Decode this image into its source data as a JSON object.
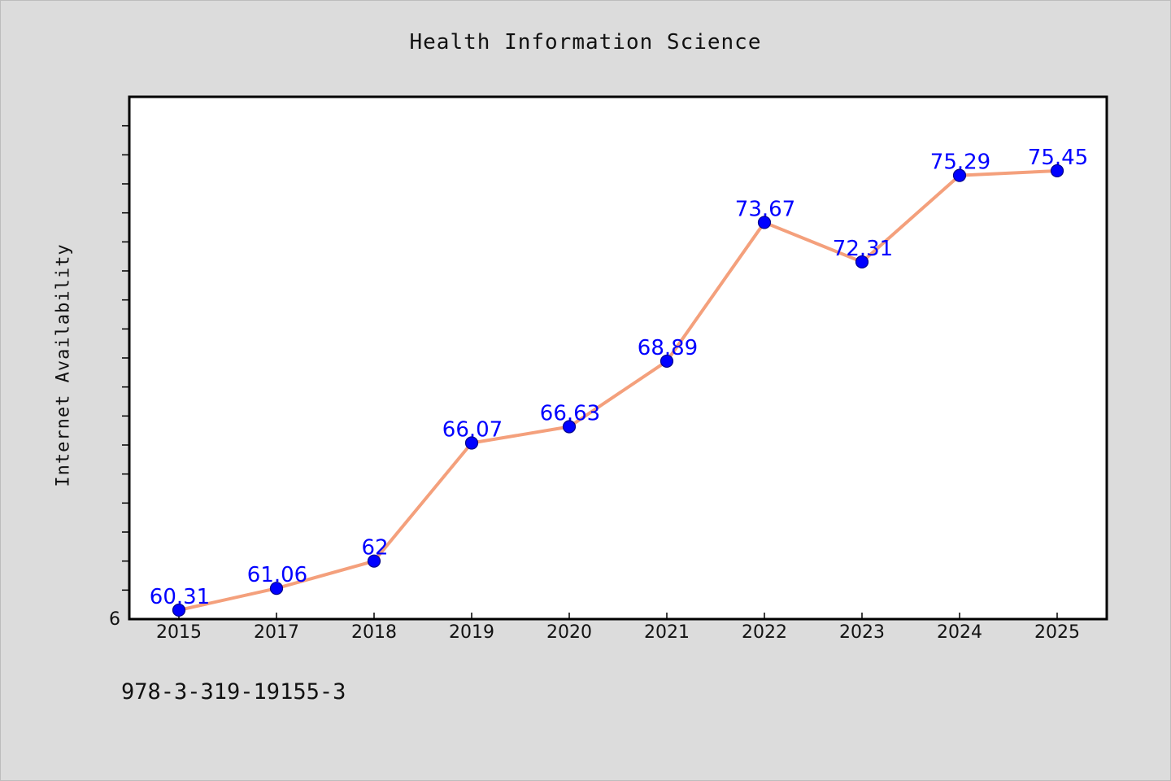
{
  "chart_data": {
    "type": "line",
    "title": "Health Information Science",
    "xlabel": "",
    "ylabel": "Internet Availability",
    "categories": [
      "2015",
      "2017",
      "2018",
      "2019",
      "2020",
      "2021",
      "2022",
      "2023",
      "2024",
      "2025"
    ],
    "series": [
      {
        "values": [
          60.31,
          61.06,
          62,
          66.07,
          66.63,
          68.89,
          73.67,
          72.31,
          75.29,
          75.45
        ]
      }
    ],
    "data_labels": [
      "60.31",
      "61.06",
      "62",
      "66.07",
      "66.63",
      "68.89",
      "73.67",
      "72.31",
      "75.29",
      "75.45"
    ],
    "ylim": [
      60,
      78
    ],
    "y_tick_label": "6",
    "grid": false,
    "line_color": "#f4a07c",
    "marker_color": "#0000ff",
    "label_color": "#0000ff"
  },
  "footer": {
    "code": "978-3-319-19155-3"
  }
}
